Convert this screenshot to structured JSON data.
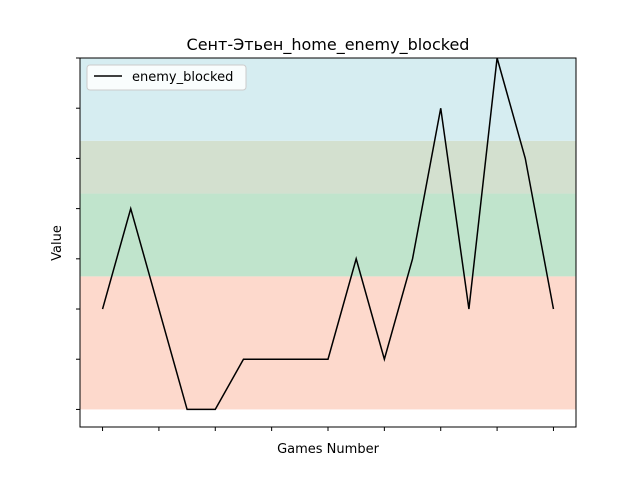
{
  "chart_data": {
    "type": "line",
    "title": "Сент-Этьен_home_enemy_blocked",
    "xlabel": "Games Number",
    "ylabel": "Value",
    "x": [
      0,
      1,
      2,
      3,
      4,
      5,
      6,
      7,
      8,
      9,
      10,
      11,
      12,
      13,
      14,
      15,
      16
    ],
    "xlim": [
      -0.8,
      16.8
    ],
    "ylim": [
      -0.35,
      7.0
    ],
    "series": [
      {
        "name": "enemy_blocked",
        "color": "#000000",
        "values": [
          2,
          4,
          2,
          0,
          0,
          1,
          1,
          1,
          1,
          3,
          1,
          3,
          6,
          2,
          7,
          5,
          2
        ]
      }
    ],
    "bands": [
      {
        "from": 0.0,
        "to": 2.65,
        "color": "#fdd9cc"
      },
      {
        "from": 2.65,
        "to": 4.3,
        "color": "#c0e4cc"
      },
      {
        "from": 4.3,
        "to": 5.35,
        "color": "#d3e0cf"
      },
      {
        "from": 5.35,
        "to": 7.0,
        "color": "#d6edf1"
      }
    ],
    "legend_position": "upper-left",
    "tick_labels_visible": false
  }
}
